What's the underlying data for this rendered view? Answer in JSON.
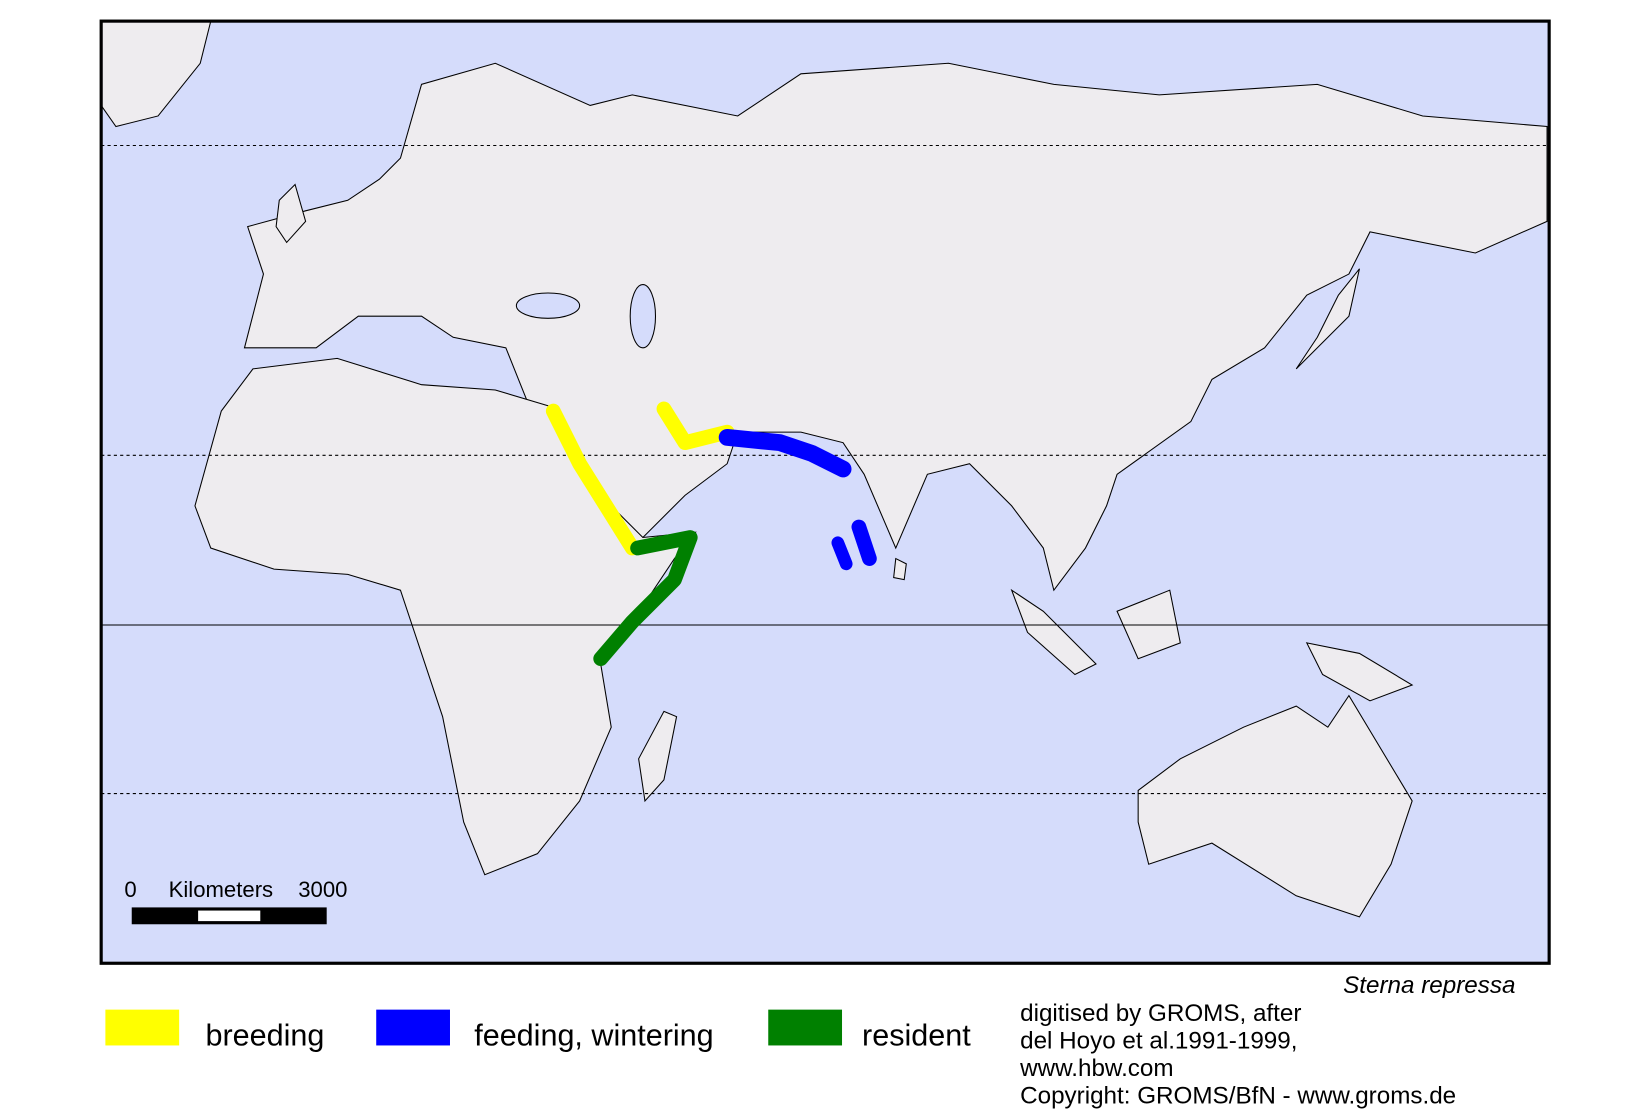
{
  "map": {
    "scale_bar": {
      "start": "0",
      "unit": "Kilometers",
      "end": "3000"
    }
  },
  "species": "Sterna repressa",
  "legend": [
    {
      "label": "breeding",
      "color": "#ffff00"
    },
    {
      "label": "feeding, wintering",
      "color": "#0000ff"
    },
    {
      "label": "resident",
      "color": "#008000"
    }
  ],
  "credits": [
    "digitised by GROMS, after",
    "del Hoyo et al.1991-1999,",
    "www.hbw.com",
    "Copyright: GROMS/BfN - www.groms.de"
  ]
}
